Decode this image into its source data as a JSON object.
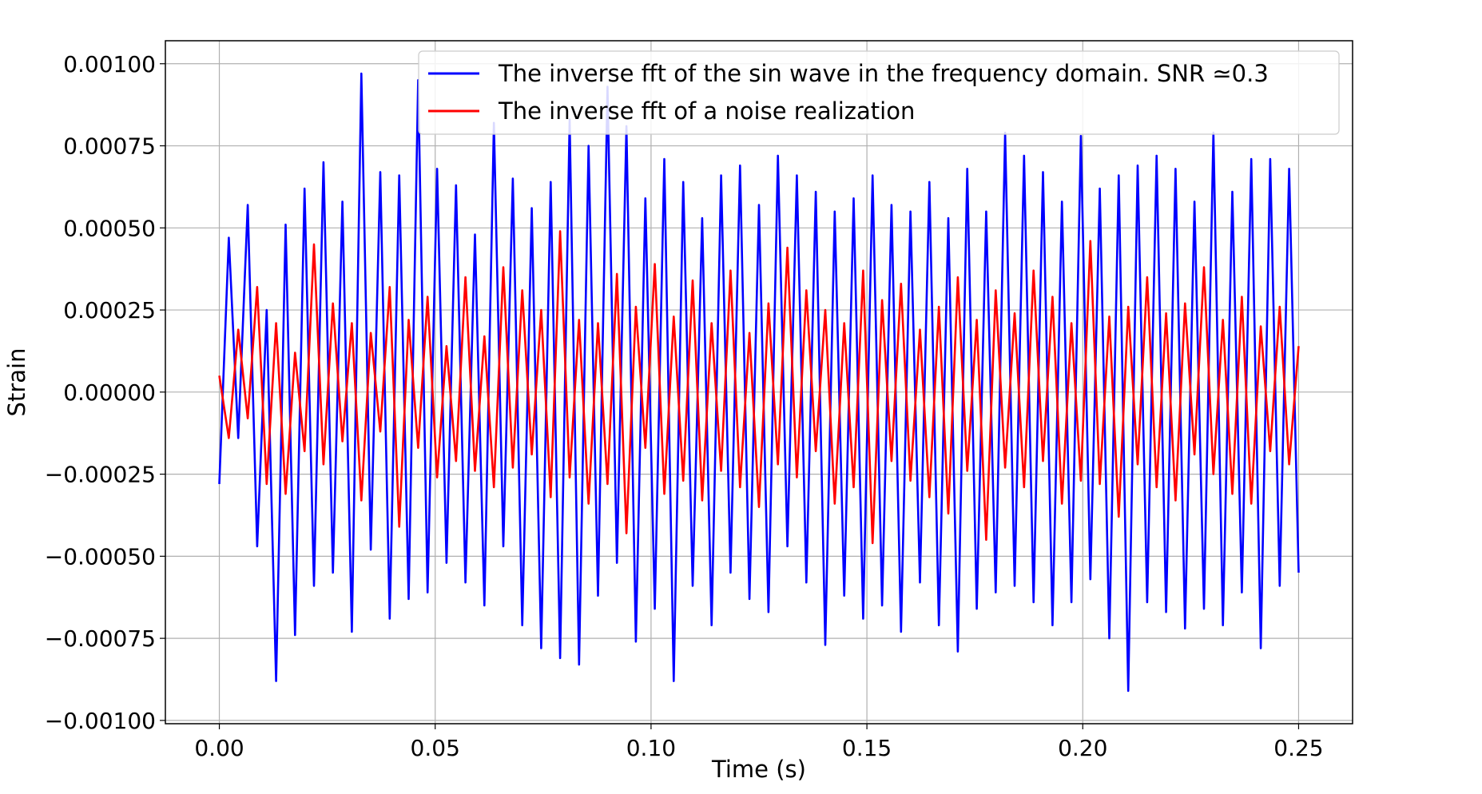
{
  "chart_data": {
    "type": "line",
    "xlabel": "Time (s)",
    "ylabel": "Strain",
    "xlim": [
      -0.0125,
      0.2625
    ],
    "ylim": [
      -0.00101,
      0.00107
    ],
    "grid": true,
    "legend_position": "top-right",
    "x_ticks": [
      0.0,
      0.05,
      0.1,
      0.15,
      0.2,
      0.25
    ],
    "x_tick_labels": [
      "0.00",
      "0.05",
      "0.10",
      "0.15",
      "0.20",
      "0.25"
    ],
    "y_ticks": [
      0.001,
      0.00075,
      0.0005,
      0.00025,
      0.0,
      -0.00025,
      -0.0005,
      -0.00075,
      -0.001
    ],
    "y_tick_labels": [
      "0.00100",
      "0.00075",
      "0.00050",
      "0.00025",
      "0.00000",
      "−0.00025",
      "−0.00050",
      "−0.00075",
      "−0.00100"
    ],
    "series": [
      {
        "name": "The inverse fft of the sin wave in the frequency domain. SNR ≃0.3",
        "color": "#0000ff",
        "x_start": 0.0,
        "x_end": 0.25,
        "values": [
          -0.00028,
          0.00047,
          -0.00014,
          0.00057,
          -0.00047,
          0.00025,
          -0.00088,
          0.00051,
          -0.00074,
          0.00062,
          -0.00059,
          0.0007,
          -0.00055,
          0.00058,
          -0.00073,
          0.00097,
          -0.00048,
          0.00067,
          -0.00069,
          0.00066,
          -0.00063,
          0.00095,
          -0.00061,
          0.00068,
          -0.00052,
          0.00063,
          -0.00058,
          0.00048,
          -0.00065,
          0.00082,
          -0.00047,
          0.00065,
          -0.00071,
          0.00056,
          -0.00078,
          0.00064,
          -0.00081,
          0.00083,
          -0.00083,
          0.00075,
          -0.00062,
          0.00093,
          -0.00052,
          0.00081,
          -0.00076,
          0.00059,
          -0.00066,
          0.00071,
          -0.00088,
          0.00064,
          -0.00059,
          0.00053,
          -0.00071,
          0.00066,
          -0.00055,
          0.00069,
          -0.00063,
          0.00057,
          -0.00067,
          0.00072,
          -0.00047,
          0.00066,
          -0.00058,
          0.00061,
          -0.00077,
          0.00055,
          -0.00062,
          0.00059,
          -0.00069,
          0.00066,
          -0.00065,
          0.00057,
          -0.00073,
          0.00055,
          -0.00058,
          0.00064,
          -0.00071,
          0.00053,
          -0.00079,
          0.00068,
          -0.00066,
          0.00055,
          -0.00061,
          0.00079,
          -0.00059,
          0.00072,
          -0.00064,
          0.00067,
          -0.00071,
          0.00058,
          -0.00064,
          0.00078,
          -0.00057,
          0.00062,
          -0.00075,
          0.00066,
          -0.00091,
          0.00069,
          -0.00064,
          0.00072,
          -0.00067,
          0.00068,
          -0.00072,
          0.00058,
          -0.00066,
          0.00079,
          -0.00071,
          0.00061,
          -0.00061,
          0.00071,
          -0.00078,
          0.00071,
          -0.00059,
          0.00068,
          -0.00055
        ]
      },
      {
        "name": "The inverse fft of a noise realization",
        "color": "#ff0000",
        "x_start": 0.0,
        "x_end": 0.25,
        "values": [
          5e-05,
          -0.00014,
          0.00019,
          -8e-05,
          0.00032,
          -0.00028,
          0.00021,
          -0.00031,
          0.00012,
          -0.00018,
          0.00045,
          -0.00022,
          0.00027,
          -0.00015,
          0.00021,
          -0.00033,
          0.00018,
          -0.00012,
          0.00032,
          -0.00041,
          0.00022,
          -0.00017,
          0.00029,
          -0.00026,
          0.00014,
          -0.00021,
          0.00035,
          -0.00024,
          0.00017,
          -0.00029,
          0.00038,
          -0.00023,
          0.00031,
          -0.00019,
          0.00025,
          -0.00032,
          0.00049,
          -0.00026,
          0.00022,
          -0.00034,
          0.00021,
          -0.00028,
          0.00036,
          -0.00043,
          0.00026,
          -0.00017,
          0.00039,
          -0.00031,
          0.00023,
          -0.00027,
          0.00034,
          -0.00033,
          0.00021,
          -0.00024,
          0.00037,
          -0.00029,
          0.00018,
          -0.00035,
          0.00027,
          -0.00022,
          0.00044,
          -0.00026,
          0.00031,
          -0.00018,
          0.00025,
          -0.00034,
          0.00021,
          -0.00029,
          0.00037,
          -0.00046,
          0.00028,
          -0.00021,
          0.00033,
          -0.00027,
          0.00019,
          -0.00032,
          0.00026,
          -0.00037,
          0.00035,
          -0.00024,
          0.00022,
          -0.00045,
          0.00031,
          -0.00023,
          0.00024,
          -0.00029,
          0.00037,
          -0.00021,
          0.00029,
          -0.00034,
          0.00021,
          -0.00027,
          0.00046,
          -0.00028,
          0.00023,
          -0.00038,
          0.00026,
          -0.00022,
          0.00035,
          -0.00029,
          0.00024,
          -0.00033,
          0.00027,
          -0.00019,
          0.00038,
          -0.00025,
          0.00022,
          -0.00031,
          0.00029,
          -0.00034,
          0.0002,
          -0.00018,
          0.00026,
          -0.00022,
          0.00014
        ]
      }
    ]
  }
}
